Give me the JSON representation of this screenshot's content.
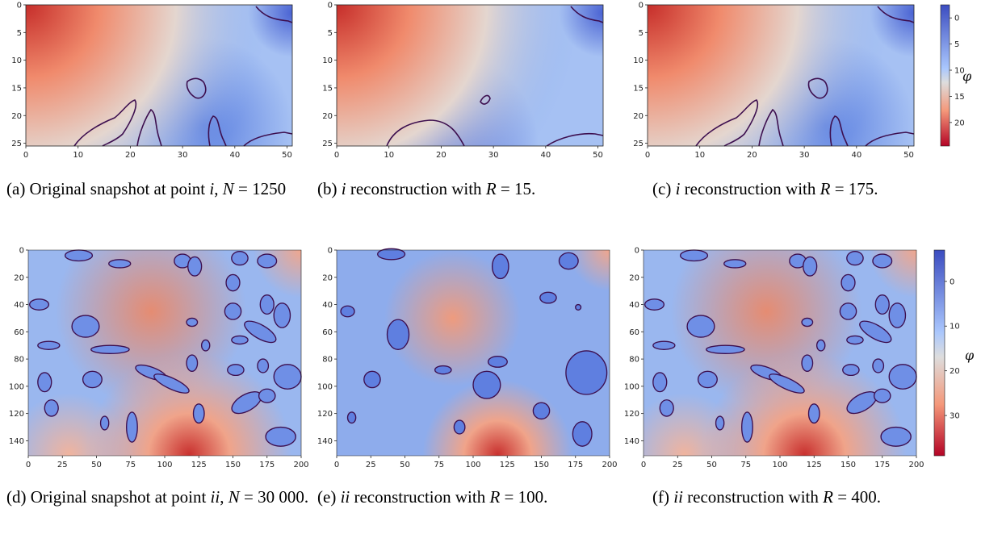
{
  "colors": {
    "low": "#3b4cc0",
    "mid": "#dddddd",
    "high": "#b40426",
    "contour": "#3d0f4f"
  },
  "chart_data": [
    {
      "type": "heatmap",
      "id": "a",
      "title": "",
      "xlabel": "",
      "ylabel": "",
      "x_ticks": [
        "0",
        "10",
        "20",
        "30",
        "40",
        "50"
      ],
      "y_ticks": [
        "0",
        "5",
        "10",
        "15",
        "20",
        "25"
      ],
      "colorbar": false
    },
    {
      "type": "heatmap",
      "id": "b",
      "title": "",
      "xlabel": "",
      "ylabel": "",
      "x_ticks": [
        "0",
        "10",
        "20",
        "30",
        "40",
        "50"
      ],
      "y_ticks": [
        "0",
        "5",
        "10",
        "15",
        "20",
        "25"
      ],
      "colorbar": false
    },
    {
      "type": "heatmap",
      "id": "c",
      "title": "",
      "xlabel": "",
      "ylabel": "",
      "x_ticks": [
        "0",
        "10",
        "20",
        "30",
        "40",
        "50"
      ],
      "y_ticks": [
        "0",
        "5",
        "10",
        "15",
        "20",
        "25"
      ],
      "colorbar": true,
      "colorbar_label": "φ",
      "colorbar_ticks": [
        "0",
        "5",
        "10",
        "15",
        "20"
      ]
    },
    {
      "type": "heatmap",
      "id": "d",
      "title": "",
      "xlabel": "",
      "ylabel": "",
      "x_ticks": [
        "0",
        "25",
        "50",
        "75",
        "100",
        "125",
        "150",
        "175",
        "200"
      ],
      "y_ticks": [
        "0",
        "20",
        "40",
        "60",
        "80",
        "100",
        "120",
        "140"
      ],
      "colorbar": false
    },
    {
      "type": "heatmap",
      "id": "e",
      "title": "",
      "xlabel": "",
      "ylabel": "",
      "x_ticks": [
        "0",
        "25",
        "50",
        "75",
        "100",
        "125",
        "150",
        "175",
        "200"
      ],
      "y_ticks": [
        "0",
        "20",
        "40",
        "60",
        "80",
        "100",
        "120",
        "140"
      ],
      "colorbar": false
    },
    {
      "type": "heatmap",
      "id": "f",
      "title": "",
      "xlabel": "",
      "ylabel": "",
      "x_ticks": [
        "0",
        "25",
        "50",
        "75",
        "100",
        "125",
        "150",
        "175",
        "200"
      ],
      "y_ticks": [
        "0",
        "20",
        "40",
        "60",
        "80",
        "100",
        "120",
        "140"
      ],
      "colorbar": true,
      "colorbar_label": "φ",
      "colorbar_ticks": [
        "0",
        "10",
        "20",
        "30"
      ]
    }
  ],
  "captions": {
    "a": {
      "lead": "(a) Original snapshot at point ",
      "var": "i",
      "mid": ", ",
      "param": "N",
      "eq": " = ",
      "tail": "1250"
    },
    "b": {
      "lead": "(b) ",
      "var": "i",
      "mid": " reconstruction with ",
      "param": "R",
      "eq": " = ",
      "tail": "15."
    },
    "c": {
      "lead": "(c) ",
      "var": "i",
      "mid": " reconstruction with ",
      "param": "R",
      "eq": " = ",
      "tail": "175."
    },
    "d": {
      "lead": "(d) Original snapshot at point ",
      "var": "ii",
      "mid": ", ",
      "param": "N",
      "eq": " = ",
      "tail": "30 000."
    },
    "e": {
      "lead": "(e) ",
      "var": "ii",
      "mid": " reconstruction with ",
      "param": "R",
      "eq": " = ",
      "tail": "100."
    },
    "f": {
      "lead": "(f) ",
      "var": "ii",
      "mid": " reconstruction with ",
      "param": "R",
      "eq": " = ",
      "tail": "400."
    }
  }
}
